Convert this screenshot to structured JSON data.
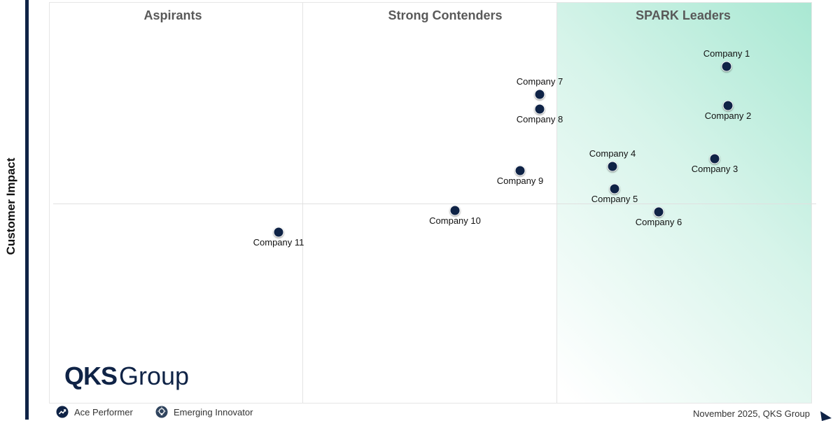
{
  "chart_data": {
    "type": "scatter",
    "ylabel": "Customer Impact",
    "quadrants": [
      "Aspirants",
      "Strong Contenders",
      "SPARK Leaders"
    ],
    "points": [
      {
        "name": "Company 1",
        "label_pos": "above"
      },
      {
        "name": "Company 2",
        "label_pos": "below"
      },
      {
        "name": "Company 3",
        "label_pos": "below"
      },
      {
        "name": "Company 4",
        "label_pos": "above"
      },
      {
        "name": "Company 5",
        "label_pos": "below"
      },
      {
        "name": "Company 6",
        "label_pos": "below"
      },
      {
        "name": "Company 7",
        "label_pos": "above"
      },
      {
        "name": "Company 8",
        "label_pos": "below"
      },
      {
        "name": "Company 9",
        "label_pos": "below"
      },
      {
        "name": "Company 10",
        "label_pos": "below"
      },
      {
        "name": "Company 11",
        "label_pos": "below"
      }
    ],
    "colors": {
      "point": "#0f2346",
      "leaders_gradient": "#a9e8d3"
    }
  },
  "logo": {
    "bold": "QKS",
    "regular": "Group"
  },
  "legend": [
    {
      "label": "Ace Performer",
      "icon": "trend-up-icon"
    },
    {
      "label": "Emerging Innovator",
      "icon": "lightbulb-icon"
    }
  ],
  "footer": "November 2025, QKS Group"
}
